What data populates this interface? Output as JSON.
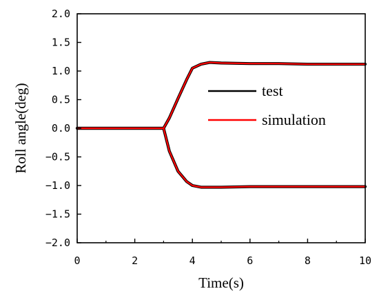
{
  "chart_data": {
    "type": "line",
    "xlabel": "Time(s)",
    "ylabel": "Roll angle(deg)",
    "xlim": [
      0,
      10
    ],
    "ylim": [
      -2.0,
      2.0
    ],
    "x_ticks": [
      0,
      2,
      4,
      6,
      8,
      10
    ],
    "x_tick_labels": [
      "0",
      "2",
      "4",
      "6",
      "8",
      "10"
    ],
    "y_ticks": [
      2.0,
      1.5,
      1.0,
      0.5,
      0.0,
      -0.5,
      -1.0,
      -1.5,
      -2.0
    ],
    "y_tick_labels": [
      "2.0",
      "1.5",
      "1.0",
      "0.5",
      "0.0",
      "−0.5",
      "−1.0",
      "−1.5",
      "−2.0"
    ],
    "grid": false,
    "legend_position": "right-middle",
    "series": [
      {
        "name": "test",
        "color": "#000000",
        "curves": [
          {
            "x": [
              0,
              1,
              2,
              3.0,
              3.2,
              3.5,
              3.8,
              4.0,
              4.3,
              4.6,
              5,
              6,
              7,
              8,
              9,
              10
            ],
            "y": [
              0.0,
              0.0,
              0.0,
              0.0,
              0.18,
              0.52,
              0.85,
              1.05,
              1.12,
              1.15,
              1.14,
              1.13,
              1.13,
              1.12,
              1.12,
              1.12
            ]
          },
          {
            "x": [
              0,
              1,
              2,
              3.0,
              3.2,
              3.5,
              3.8,
              4.0,
              4.3,
              4.6,
              5,
              6,
              7,
              8,
              9,
              10
            ],
            "y": [
              0.0,
              0.0,
              0.0,
              0.0,
              -0.4,
              -0.75,
              -0.93,
              -1.0,
              -1.03,
              -1.03,
              -1.03,
              -1.02,
              -1.02,
              -1.02,
              -1.02,
              -1.02
            ]
          }
        ]
      },
      {
        "name": "simulation",
        "color": "#ff0000",
        "curves": [
          {
            "x": [
              0,
              1,
              2,
              3.0,
              3.2,
              3.5,
              3.8,
              4.0,
              4.3,
              4.6,
              5,
              6,
              7,
              8,
              9,
              10
            ],
            "y": [
              0.0,
              0.0,
              0.0,
              0.0,
              0.18,
              0.52,
              0.85,
              1.05,
              1.12,
              1.15,
              1.14,
              1.13,
              1.13,
              1.12,
              1.12,
              1.12
            ]
          },
          {
            "x": [
              0,
              1,
              2,
              3.0,
              3.2,
              3.5,
              3.8,
              4.0,
              4.3,
              4.6,
              5,
              6,
              7,
              8,
              9,
              10
            ],
            "y": [
              0.0,
              0.0,
              0.0,
              0.0,
              -0.4,
              -0.75,
              -0.93,
              -1.0,
              -1.03,
              -1.03,
              -1.03,
              -1.02,
              -1.02,
              -1.02,
              -1.02,
              -1.02
            ]
          }
        ]
      }
    ]
  }
}
